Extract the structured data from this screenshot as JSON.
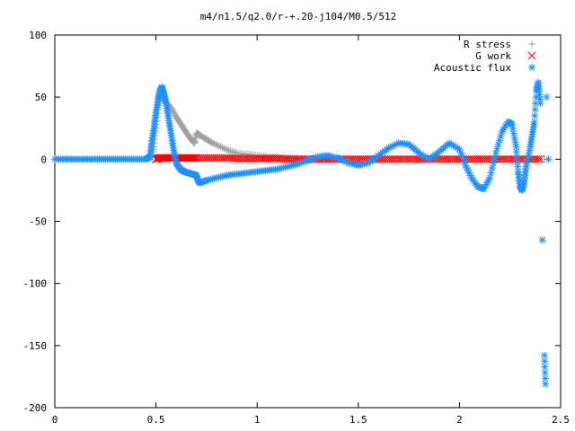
{
  "chart_data": {
    "type": "scatter",
    "title": "m4/n1.5/q2.0/r-+.20-j104/M0.5/512",
    "xlabel": "",
    "ylabel": "",
    "xlim": [
      0,
      2.5
    ],
    "ylim": [
      -200,
      100
    ],
    "x_ticks": [
      0,
      0.5,
      1,
      1.5,
      2,
      2.5
    ],
    "x_tick_labels": [
      "0",
      "0.5",
      "1",
      "1.5",
      "2",
      "2.5"
    ],
    "y_ticks": [
      -200,
      -150,
      -100,
      -50,
      0,
      50,
      100
    ],
    "y_tick_labels": [
      "-200",
      "-150",
      "-100",
      "-50",
      "0",
      "50",
      "100"
    ],
    "grid": false,
    "legend_position": "top-right",
    "series": [
      {
        "name": "R stress",
        "marker": "plus",
        "color": "#a0a0a0",
        "points": [
          [
            0.48,
            0
          ],
          [
            0.49,
            10
          ],
          [
            0.5,
            25
          ],
          [
            0.51,
            40
          ],
          [
            0.52,
            48
          ],
          [
            0.53,
            50
          ],
          [
            0.54,
            48
          ],
          [
            0.56,
            44
          ],
          [
            0.58,
            40
          ],
          [
            0.6,
            34
          ],
          [
            0.62,
            29
          ],
          [
            0.64,
            24
          ],
          [
            0.66,
            19
          ],
          [
            0.68,
            15
          ],
          [
            0.69,
            13
          ],
          [
            0.7,
            21
          ],
          [
            0.72,
            19
          ],
          [
            0.75,
            16
          ],
          [
            0.78,
            13
          ],
          [
            0.82,
            10
          ],
          [
            0.86,
            7
          ],
          [
            0.9,
            5
          ],
          [
            0.95,
            4
          ],
          [
            1.0,
            3
          ],
          [
            1.05,
            2
          ],
          [
            1.1,
            1.5
          ],
          [
            1.15,
            1
          ],
          [
            1.2,
            0.5
          ],
          [
            1.3,
            0
          ],
          [
            1.4,
            0
          ],
          [
            1.6,
            0
          ],
          [
            1.8,
            0
          ],
          [
            2.0,
            0
          ],
          [
            2.2,
            0
          ],
          [
            2.42,
            0
          ]
        ]
      },
      {
        "name": "G work",
        "marker": "cross",
        "color": "#ff0000",
        "points": [
          [
            0.5,
            0
          ],
          [
            0.52,
            1
          ],
          [
            0.54,
            1
          ],
          [
            0.56,
            1
          ],
          [
            0.58,
            1
          ],
          [
            0.6,
            1
          ],
          [
            0.62,
            1
          ],
          [
            0.64,
            1
          ],
          [
            0.66,
            1
          ],
          [
            0.68,
            1
          ],
          [
            0.7,
            1
          ],
          [
            0.75,
            1
          ],
          [
            0.8,
            1
          ],
          [
            0.85,
            1
          ],
          [
            0.9,
            0.5
          ],
          [
            0.95,
            0.5
          ],
          [
            1.0,
            0.5
          ],
          [
            1.05,
            0.5
          ],
          [
            1.1,
            0.5
          ],
          [
            1.15,
            0
          ],
          [
            1.2,
            0
          ],
          [
            1.25,
            0
          ],
          [
            1.3,
            0
          ],
          [
            1.35,
            0
          ],
          [
            1.4,
            0
          ],
          [
            1.45,
            0
          ],
          [
            1.5,
            0
          ],
          [
            1.55,
            0
          ],
          [
            1.6,
            0
          ],
          [
            1.65,
            0
          ],
          [
            1.7,
            0
          ],
          [
            1.75,
            0
          ],
          [
            1.8,
            0
          ],
          [
            1.85,
            0
          ],
          [
            1.9,
            0
          ],
          [
            1.95,
            0
          ],
          [
            2.0,
            0
          ],
          [
            2.05,
            0
          ],
          [
            2.1,
            0
          ],
          [
            2.15,
            0
          ],
          [
            2.2,
            0
          ],
          [
            2.25,
            0
          ],
          [
            2.3,
            0
          ],
          [
            2.35,
            0
          ],
          [
            2.4,
            0
          ]
        ]
      },
      {
        "name": "Acoustic flux",
        "marker": "star",
        "color": "#1e90ff",
        "points": [
          [
            0.0,
            0
          ],
          [
            0.05,
            0
          ],
          [
            0.1,
            0
          ],
          [
            0.15,
            0
          ],
          [
            0.2,
            0
          ],
          [
            0.25,
            0
          ],
          [
            0.3,
            0
          ],
          [
            0.35,
            0
          ],
          [
            0.4,
            0
          ],
          [
            0.45,
            0
          ],
          [
            0.47,
            2
          ],
          [
            0.48,
            15
          ],
          [
            0.49,
            25
          ],
          [
            0.5,
            38
          ],
          [
            0.51,
            48
          ],
          [
            0.52,
            55
          ],
          [
            0.53,
            58
          ],
          [
            0.54,
            52
          ],
          [
            0.55,
            45
          ],
          [
            0.56,
            35
          ],
          [
            0.57,
            25
          ],
          [
            0.58,
            15
          ],
          [
            0.59,
            5
          ],
          [
            0.6,
            -3
          ],
          [
            0.62,
            -8
          ],
          [
            0.64,
            -10
          ],
          [
            0.66,
            -11
          ],
          [
            0.68,
            -12
          ],
          [
            0.7,
            -13
          ],
          [
            0.71,
            -18
          ],
          [
            0.72,
            -19
          ],
          [
            0.75,
            -17
          ],
          [
            0.8,
            -15
          ],
          [
            0.85,
            -13
          ],
          [
            0.9,
            -12
          ],
          [
            0.95,
            -11
          ],
          [
            1.0,
            -10
          ],
          [
            1.05,
            -9
          ],
          [
            1.1,
            -8
          ],
          [
            1.15,
            -6
          ],
          [
            1.2,
            -4
          ],
          [
            1.25,
            -1
          ],
          [
            1.3,
            2
          ],
          [
            1.35,
            3
          ],
          [
            1.4,
            1
          ],
          [
            1.45,
            -3
          ],
          [
            1.5,
            -5
          ],
          [
            1.55,
            -3
          ],
          [
            1.6,
            3
          ],
          [
            1.65,
            9
          ],
          [
            1.7,
            13
          ],
          [
            1.75,
            12
          ],
          [
            1.8,
            5
          ],
          [
            1.85,
            0
          ],
          [
            1.9,
            6
          ],
          [
            1.95,
            13
          ],
          [
            2.0,
            8
          ],
          [
            2.03,
            -5
          ],
          [
            2.06,
            -15
          ],
          [
            2.09,
            -22
          ],
          [
            2.12,
            -24
          ],
          [
            2.15,
            -15
          ],
          [
            2.18,
            5
          ],
          [
            2.21,
            22
          ],
          [
            2.24,
            30
          ],
          [
            2.26,
            28
          ],
          [
            2.28,
            10
          ],
          [
            2.29,
            -10
          ],
          [
            2.3,
            -22
          ],
          [
            2.31,
            -25
          ],
          [
            2.32,
            -18
          ],
          [
            2.33,
            -5
          ],
          [
            2.35,
            10
          ],
          [
            2.36,
            20
          ],
          [
            2.37,
            30
          ],
          [
            2.38,
            55
          ],
          [
            2.39,
            62
          ],
          [
            2.4,
            45
          ],
          [
            2.41,
            -65
          ],
          [
            2.42,
            -158
          ],
          [
            2.425,
            -181
          ],
          [
            2.43,
            50
          ],
          [
            2.44,
            0
          ]
        ]
      }
    ]
  }
}
